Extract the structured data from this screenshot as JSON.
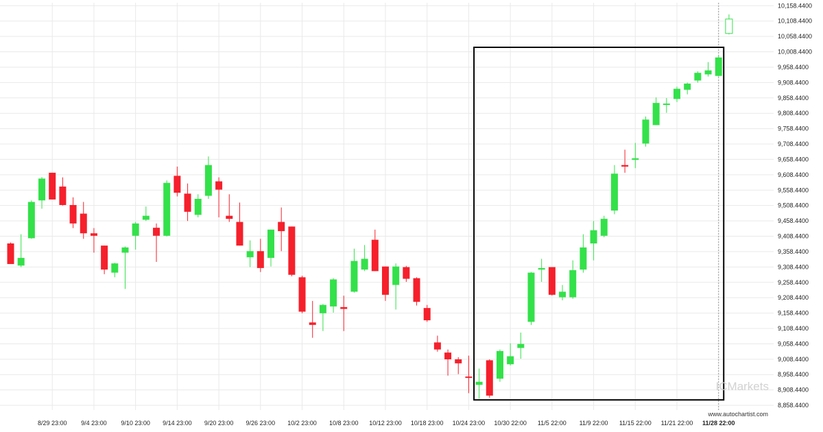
{
  "branding": {
    "logo_text": "ICMarkets",
    "source_url": "www.autochartist.com"
  },
  "colors": {
    "up": "#33e14a",
    "down": "#f5202b",
    "frame": "#000000",
    "grid": "#e9e9e9"
  },
  "chart_data": {
    "type": "candlestick",
    "ylim": [
      8843,
      10168
    ],
    "y_ticks": [
      10158.44,
      10108.44,
      10058.44,
      10008.44,
      9958.44,
      9908.44,
      9858.44,
      9808.44,
      9758.44,
      9708.44,
      9658.44,
      9608.44,
      9558.44,
      9508.44,
      9458.44,
      9408.44,
      9358.44,
      9308.44,
      9258.44,
      9208.44,
      9158.44,
      9108.44,
      9058.44,
      9008.44,
      8958.44,
      8908.44,
      8858.44
    ],
    "y_tick_labels": [
      "10,158.4400",
      "10,108.4400",
      "10,058.4400",
      "10,008.4400",
      "9,958.4400",
      "9,908.4400",
      "9,858.4400",
      "9,808.4400",
      "9,758.4400",
      "9,708.4400",
      "9,658.4400",
      "9,608.4400",
      "9,558.4400",
      "9,508.4400",
      "9,458.4400",
      "9,408.4400",
      "9,358.4400",
      "9,308.4400",
      "9,258.4400",
      "9,208.4400",
      "9,158.4400",
      "9,108.4400",
      "9,058.4400",
      "9,008.4400",
      "8,958.4400",
      "8,908.4400",
      "8,858.4400"
    ],
    "x_tick_labels": [
      {
        "label": "8/29 23:00",
        "candle": 4
      },
      {
        "label": "9/4 23:00",
        "candle": 8
      },
      {
        "label": "9/10 23:00",
        "candle": 12
      },
      {
        "label": "9/14 23:00",
        "candle": 16
      },
      {
        "label": "9/20 23:00",
        "candle": 20
      },
      {
        "label": "9/26 23:00",
        "candle": 24
      },
      {
        "label": "10/2 23:00",
        "candle": 28
      },
      {
        "label": "10/8 23:00",
        "candle": 32
      },
      {
        "label": "10/12 23:00",
        "candle": 36
      },
      {
        "label": "10/18 23:00",
        "candle": 40
      },
      {
        "label": "10/24 23:00",
        "candle": 44
      },
      {
        "label": "10/30 22:00",
        "candle": 48
      },
      {
        "label": "11/5 22:00",
        "candle": 52
      },
      {
        "label": "11/9 22:00",
        "candle": 56
      },
      {
        "label": "11/15 22:00",
        "candle": 60
      },
      {
        "label": "11/21 22:00",
        "candle": 64
      },
      {
        "label": "11/28 22:00",
        "candle": 68,
        "bold": true
      }
    ],
    "candles": [
      {
        "o": 9385,
        "h": 9388,
        "l": 9318,
        "c": 9318
      },
      {
        "o": 9313,
        "h": 9415,
        "l": 9308,
        "c": 9338
      },
      {
        "o": 9402,
        "h": 9525,
        "l": 9400,
        "c": 9520
      },
      {
        "o": 9525,
        "h": 9601,
        "l": 9498,
        "c": 9596
      },
      {
        "o": 9615,
        "h": 9615,
        "l": 9528,
        "c": 9528
      },
      {
        "o": 9570,
        "h": 9600,
        "l": 9508,
        "c": 9510
      },
      {
        "o": 9510,
        "h": 9535,
        "l": 9435,
        "c": 9450
      },
      {
        "o": 9482,
        "h": 9520,
        "l": 9400,
        "c": 9418
      },
      {
        "o": 9418,
        "h": 9435,
        "l": 9355,
        "c": 9410
      },
      {
        "o": 9378,
        "h": 9378,
        "l": 9285,
        "c": 9300
      },
      {
        "o": 9290,
        "h": 9322,
        "l": 9275,
        "c": 9320
      },
      {
        "o": 9355,
        "h": 9375,
        "l": 9237,
        "c": 9372
      },
      {
        "o": 9410,
        "h": 9455,
        "l": 9365,
        "c": 9450
      },
      {
        "o": 9462,
        "h": 9505,
        "l": 9458,
        "c": 9475
      },
      {
        "o": 9436,
        "h": 9450,
        "l": 9325,
        "c": 9410
      },
      {
        "o": 9410,
        "h": 9590,
        "l": 9408,
        "c": 9582
      },
      {
        "o": 9605,
        "h": 9635,
        "l": 9538,
        "c": 9550
      },
      {
        "o": 9547,
        "h": 9580,
        "l": 9458,
        "c": 9488
      },
      {
        "o": 9478,
        "h": 9545,
        "l": 9470,
        "c": 9530
      },
      {
        "o": 9540,
        "h": 9668,
        "l": 9530,
        "c": 9640
      },
      {
        "o": 9587,
        "h": 9600,
        "l": 9470,
        "c": 9560
      },
      {
        "o": 9475,
        "h": 9545,
        "l": 9455,
        "c": 9465
      },
      {
        "o": 9455,
        "h": 9518,
        "l": 9378,
        "c": 9378
      },
      {
        "o": 9340,
        "h": 9395,
        "l": 9308,
        "c": 9360
      },
      {
        "o": 9360,
        "h": 9400,
        "l": 9292,
        "c": 9305
      },
      {
        "o": 9338,
        "h": 9430,
        "l": 9310,
        "c": 9430
      },
      {
        "o": 9455,
        "h": 9502,
        "l": 9360,
        "c": 9425
      },
      {
        "o": 9440,
        "h": 9440,
        "l": 9278,
        "c": 9283
      },
      {
        "o": 9275,
        "h": 9280,
        "l": 9158,
        "c": 9163
      },
      {
        "o": 9128,
        "h": 9198,
        "l": 9078,
        "c": 9120
      },
      {
        "o": 9158,
        "h": 9188,
        "l": 9100,
        "c": 9185
      },
      {
        "o": 9180,
        "h": 9272,
        "l": 9160,
        "c": 9268
      },
      {
        "o": 9178,
        "h": 9215,
        "l": 9100,
        "c": 9172
      },
      {
        "o": 9228,
        "h": 9368,
        "l": 9225,
        "c": 9328
      },
      {
        "o": 9300,
        "h": 9380,
        "l": 9295,
        "c": 9335
      },
      {
        "o": 9397,
        "h": 9430,
        "l": 9295,
        "c": 9295
      },
      {
        "o": 9310,
        "h": 9310,
        "l": 9198,
        "c": 9218
      },
      {
        "o": 9250,
        "h": 9320,
        "l": 9170,
        "c": 9310
      },
      {
        "o": 9308,
        "h": 9312,
        "l": 9260,
        "c": 9270
      },
      {
        "o": 9272,
        "h": 9275,
        "l": 9183,
        "c": 9195
      },
      {
        "o": 9175,
        "h": 9185,
        "l": 9130,
        "c": 9135
      },
      {
        "o": 9063,
        "h": 9085,
        "l": 9033,
        "c": 9040
      },
      {
        "o": 9030,
        "h": 9040,
        "l": 8955,
        "c": 9008
      },
      {
        "o": 9008,
        "h": 9015,
        "l": 8960,
        "c": 8995
      },
      {
        "o": 8952,
        "h": 9020,
        "l": 8898,
        "c": 8950
      },
      {
        "o": 8925,
        "h": 8978,
        "l": 8880,
        "c": 8935
      },
      {
        "o": 9005,
        "h": 9008,
        "l": 8883,
        "c": 8890
      },
      {
        "o": 8945,
        "h": 9040,
        "l": 8935,
        "c": 9035
      },
      {
        "o": 8992,
        "h": 9060,
        "l": 8988,
        "c": 9018
      },
      {
        "o": 9045,
        "h": 9095,
        "l": 9010,
        "c": 9058
      },
      {
        "o": 9130,
        "h": 9292,
        "l": 9120,
        "c": 9290
      },
      {
        "o": 9300,
        "h": 9335,
        "l": 9260,
        "c": 9305
      },
      {
        "o": 9308,
        "h": 9308,
        "l": 9215,
        "c": 9218
      },
      {
        "o": 9210,
        "h": 9250,
        "l": 9200,
        "c": 9228
      },
      {
        "o": 9210,
        "h": 9330,
        "l": 9205,
        "c": 9298
      },
      {
        "o": 9300,
        "h": 9415,
        "l": 9290,
        "c": 9372
      },
      {
        "o": 9385,
        "h": 9458,
        "l": 9330,
        "c": 9428
      },
      {
        "o": 9410,
        "h": 9475,
        "l": 9405,
        "c": 9465
      },
      {
        "o": 9492,
        "h": 9640,
        "l": 9480,
        "c": 9612
      },
      {
        "o": 9640,
        "h": 9690,
        "l": 9615,
        "c": 9635
      },
      {
        "o": 9657,
        "h": 9712,
        "l": 9630,
        "c": 9662
      },
      {
        "o": 9710,
        "h": 9798,
        "l": 9700,
        "c": 9788
      },
      {
        "o": 9770,
        "h": 9860,
        "l": 9770,
        "c": 9842
      },
      {
        "o": 9838,
        "h": 9858,
        "l": 9810,
        "c": 9840
      },
      {
        "o": 9855,
        "h": 9895,
        "l": 9845,
        "c": 9888
      },
      {
        "o": 9885,
        "h": 9908,
        "l": 9870,
        "c": 9905
      },
      {
        "o": 9915,
        "h": 9945,
        "l": 9908,
        "c": 9940
      },
      {
        "o": 9935,
        "h": 9975,
        "l": 9928,
        "c": 9948
      },
      {
        "o": 9930,
        "h": 9995,
        "l": 9928,
        "c": 9990
      },
      {
        "o": 10068,
        "h": 10130,
        "l": 10065,
        "c": 10115,
        "hollow": true
      }
    ],
    "highlight": {
      "from_candle": 45,
      "to_candle": 68,
      "y_top": 10023,
      "y_bottom": 8876
    }
  }
}
